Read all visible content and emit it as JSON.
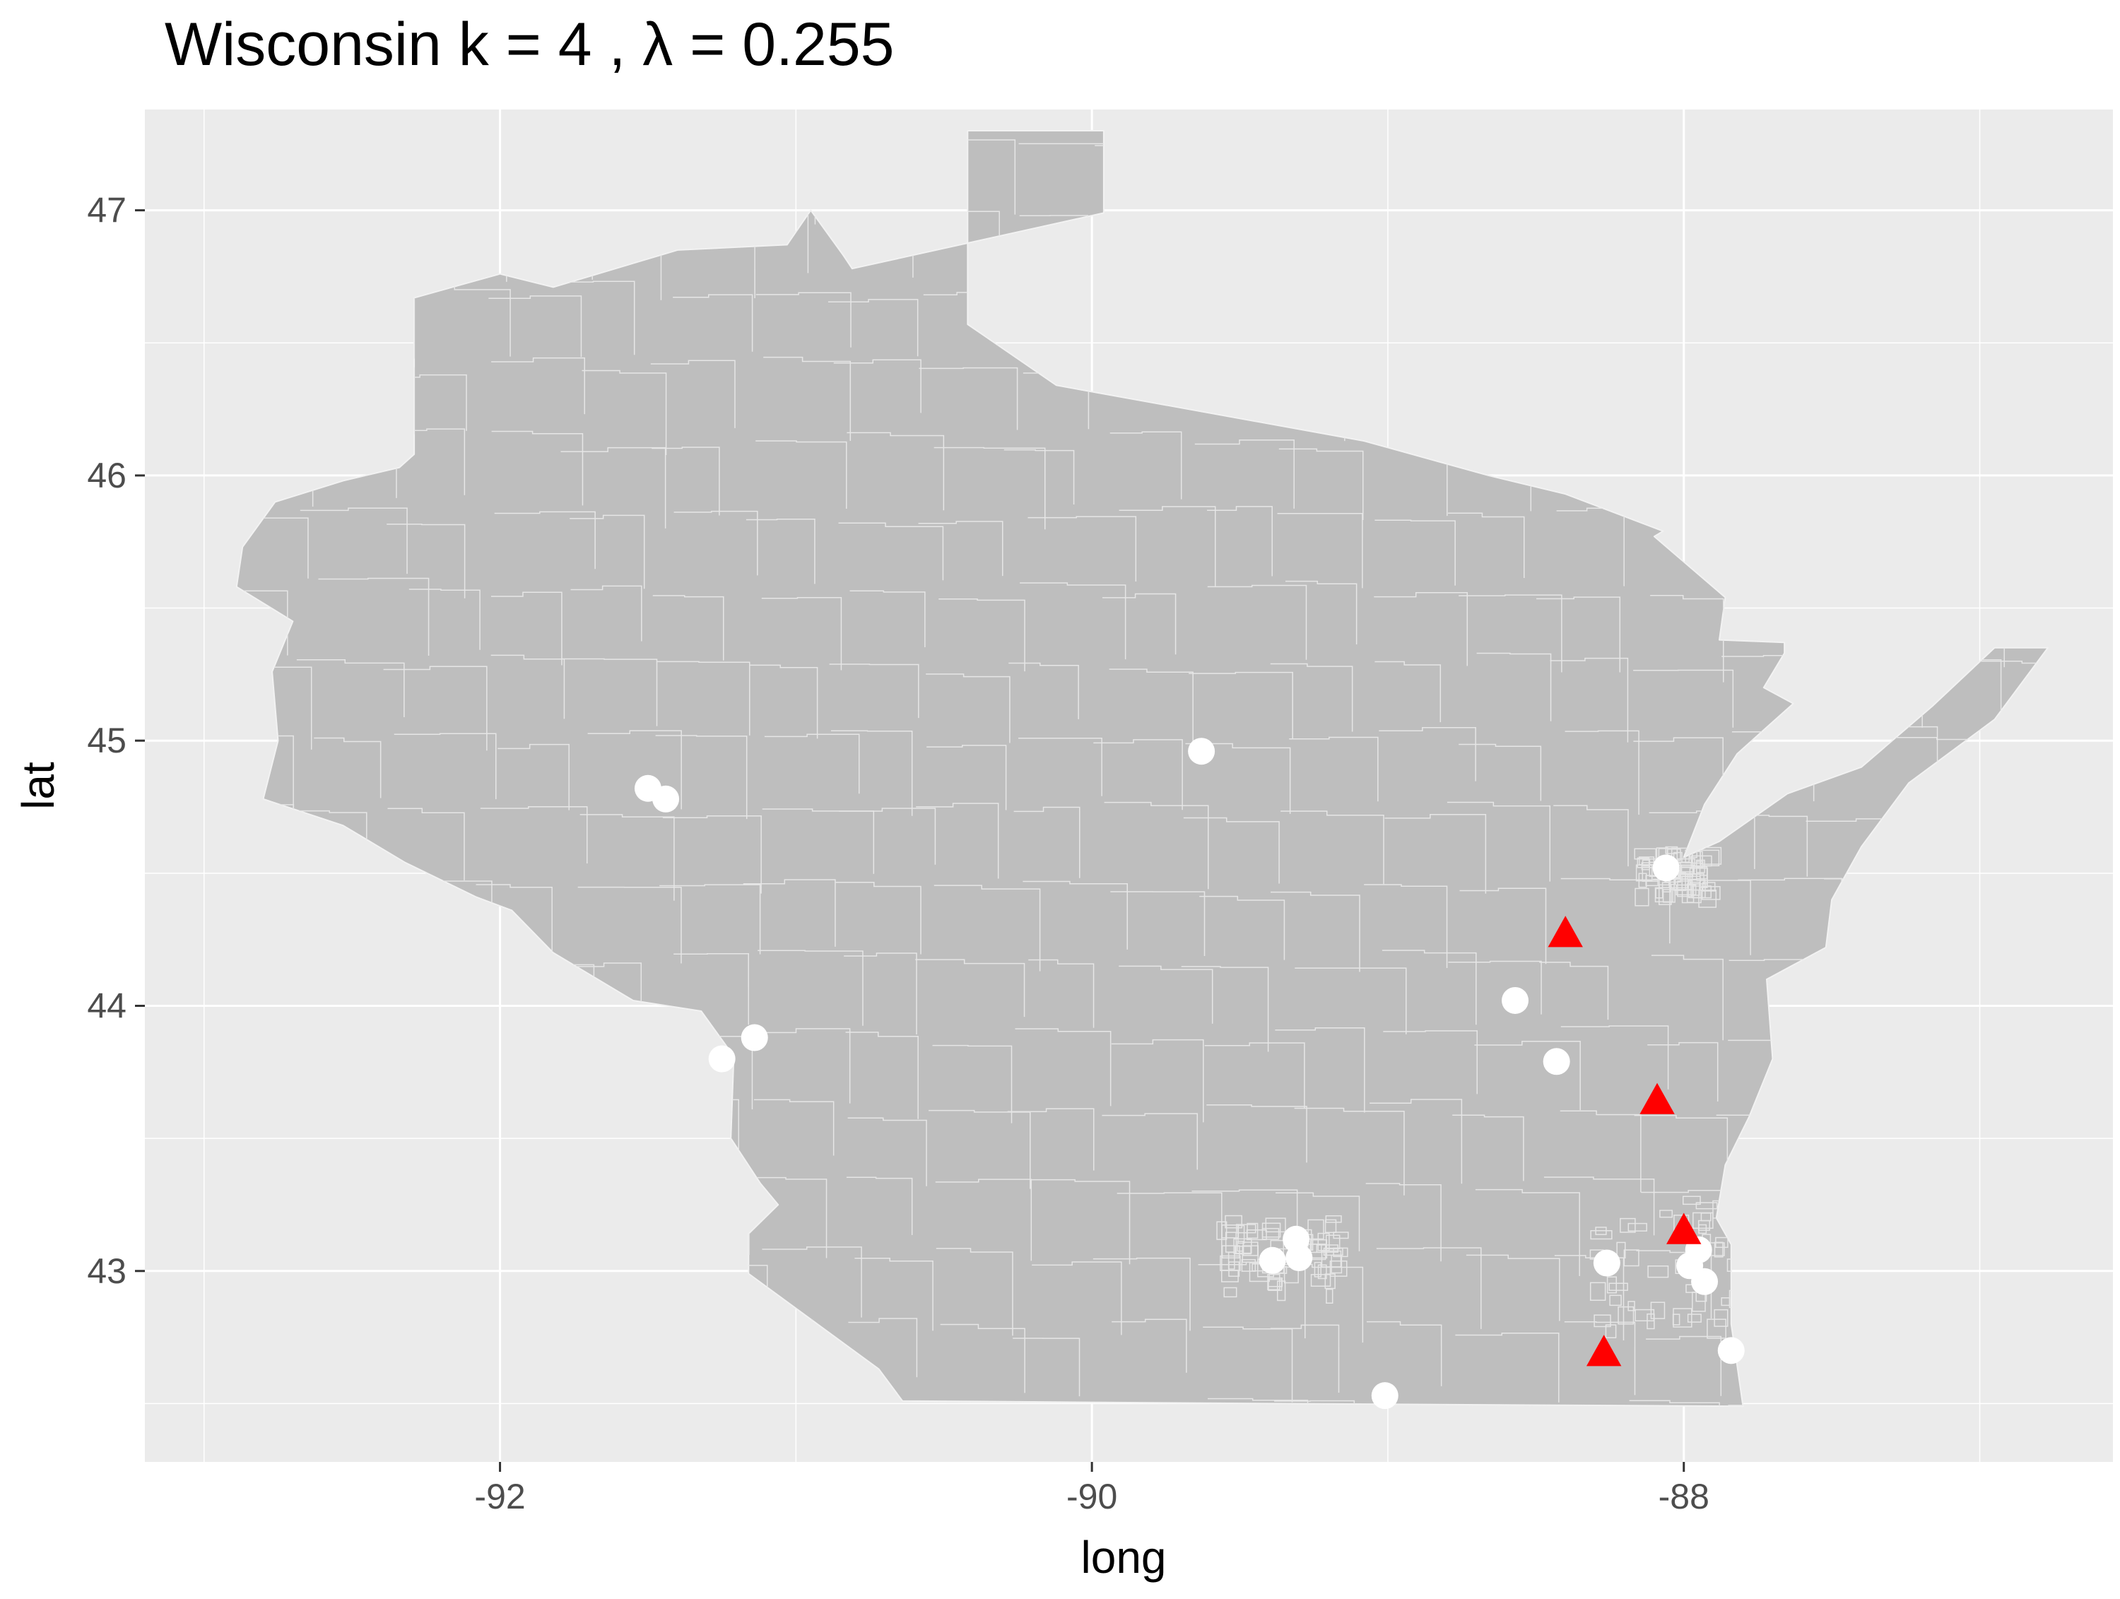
{
  "chart_data": {
    "type": "scatter",
    "title": "Wisconsin  k =  4 ,  λ  =  0.255",
    "xlabel": "long",
    "ylabel": "lat",
    "xlim": [
      -93.2,
      -86.55
    ],
    "ylim": [
      42.28,
      47.38
    ],
    "x_ticks": [
      -92,
      -90,
      -88
    ],
    "x_tick_labels": [
      "-92",
      "-90",
      "-88"
    ],
    "y_ticks": [
      43,
      44,
      45,
      46,
      47
    ],
    "y_tick_labels": [
      "43",
      "44",
      "45",
      "46",
      "47"
    ],
    "grid": true,
    "background_color": "#ebebeb",
    "map_fill_color": "#bebebe",
    "boundary_color": "#e6e6e6",
    "series": [
      {
        "marker": "circle",
        "color": "#ffffff",
        "x": [
          -89.63,
          -91.5,
          -91.44,
          -88.06,
          -88.57,
          -88.43,
          -91.14,
          -91.25,
          -89.31,
          -89.39,
          -89.3,
          -88.26,
          -87.95,
          -87.98,
          -87.93,
          -87.84,
          -89.01
        ],
        "y": [
          44.96,
          44.82,
          44.78,
          44.52,
          44.02,
          43.79,
          43.88,
          43.8,
          43.12,
          43.04,
          43.05,
          43.03,
          43.08,
          43.02,
          42.96,
          42.7,
          42.53
        ]
      },
      {
        "marker": "triangle",
        "color": "#ff0000",
        "x": [
          -88.4,
          -88.09,
          -88.0,
          -88.27
        ],
        "y": [
          44.27,
          43.64,
          43.15,
          42.69
        ]
      }
    ]
  }
}
